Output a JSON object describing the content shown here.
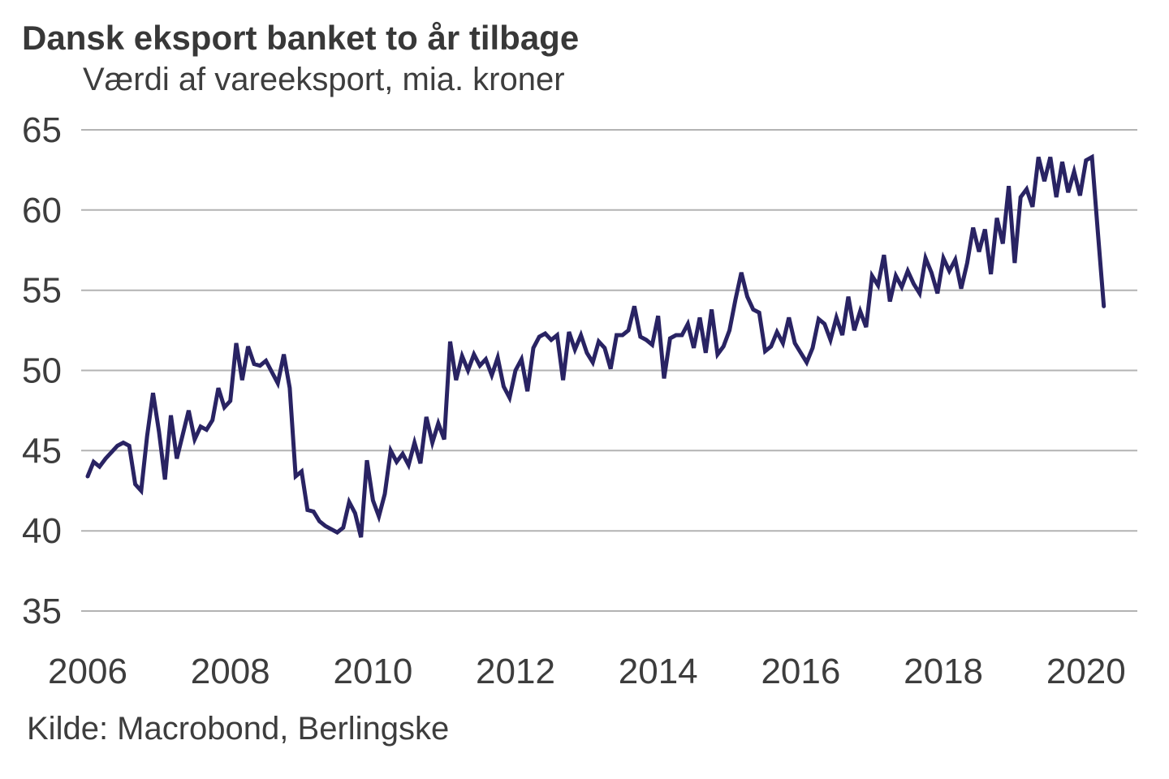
{
  "header": {
    "title": "Dansk eksport banket to år tilbage",
    "subtitle": "Værdi af vareeksport, mia. kroner"
  },
  "footer": {
    "source": "Kilde: Macrobond, Berlingske"
  },
  "chart_data": {
    "type": "line",
    "title": "Dansk eksport banket to år tilbage",
    "subtitle": "Værdi af vareeksport, mia. kroner",
    "source": "Kilde: Macrobond, Berlingske",
    "unit": "mia. kroner",
    "frequency": "monthly",
    "x_start": "2006-01",
    "x_end": "2020-04",
    "x_tick_labels": [
      "2006",
      "2008",
      "2010",
      "2012",
      "2014",
      "2016",
      "2018",
      "2020"
    ],
    "y_ticks": [
      35,
      40,
      45,
      50,
      55,
      60,
      65
    ],
    "ylim": [
      35,
      65
    ],
    "grid": true,
    "legend": "none",
    "line_color": "#292363",
    "grid_color": "#b3b3b3",
    "text_color": "#3d3d3d",
    "series": [
      {
        "name": "Værdi af vareeksport",
        "values": [
          43.4,
          44.3,
          44.0,
          44.5,
          44.9,
          45.3,
          45.5,
          45.3,
          42.9,
          42.5,
          45.9,
          48.6,
          46.2,
          43.2,
          47.2,
          44.5,
          46.0,
          47.5,
          45.7,
          46.5,
          46.3,
          46.9,
          48.9,
          47.7,
          48.1,
          51.7,
          49.4,
          51.5,
          50.4,
          50.3,
          50.6,
          49.9,
          49.2,
          51.0,
          48.9,
          43.4,
          43.7,
          41.3,
          41.2,
          40.6,
          40.3,
          40.1,
          39.9,
          40.2,
          41.8,
          41.1,
          39.6,
          44.4,
          41.9,
          40.9,
          42.3,
          45.0,
          44.3,
          44.8,
          44.1,
          45.5,
          44.2,
          47.1,
          45.5,
          46.7,
          45.7,
          51.8,
          49.4,
          50.9,
          50.0,
          51.0,
          50.3,
          50.7,
          49.7,
          50.8,
          49.0,
          48.3,
          50.0,
          50.7,
          48.7,
          51.4,
          52.1,
          52.3,
          51.9,
          52.2,
          49.4,
          52.4,
          51.3,
          52.2,
          51.1,
          50.5,
          51.8,
          51.4,
          50.1,
          52.2,
          52.2,
          52.5,
          54.0,
          52.1,
          51.9,
          51.6,
          53.4,
          49.5,
          52.0,
          52.2,
          52.2,
          52.9,
          51.4,
          53.3,
          51.1,
          53.8,
          51.0,
          51.5,
          52.5,
          54.4,
          56.1,
          54.6,
          53.8,
          53.6,
          51.2,
          51.5,
          52.4,
          51.7,
          53.3,
          51.7,
          51.1,
          50.5,
          51.4,
          53.2,
          52.9,
          51.9,
          53.3,
          52.2,
          54.6,
          52.5,
          53.7,
          52.7,
          55.9,
          55.3,
          57.2,
          54.3,
          55.9,
          55.2,
          56.2,
          55.4,
          54.8,
          57.0,
          56.1,
          54.8,
          57.0,
          56.2,
          56.9,
          55.1,
          56.7,
          58.9,
          57.4,
          58.8,
          56.0,
          59.5,
          57.9,
          61.5,
          56.7,
          60.8,
          61.3,
          60.2,
          63.3,
          61.8,
          63.3,
          60.8,
          63.0,
          61.1,
          62.4,
          60.9,
          63.1,
          63.3,
          58.6,
          54.0
        ]
      }
    ]
  }
}
